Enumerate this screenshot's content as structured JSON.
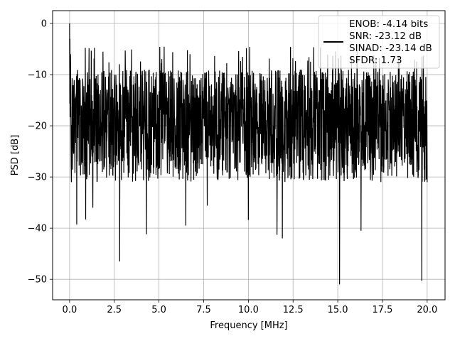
{
  "chart_data": {
    "type": "line",
    "title": "",
    "xlabel": "Frequency [MHz]",
    "ylabel": "PSD [dB]",
    "xlim": [
      -0.95,
      21.0
    ],
    "ylim": [
      -54.0,
      2.5
    ],
    "x_ticks": [
      0.0,
      2.5,
      5.0,
      7.5,
      10.0,
      12.5,
      15.0,
      17.5,
      20.0
    ],
    "x_tick_labels": [
      "0.0",
      "2.5",
      "5.0",
      "7.5",
      "10.0",
      "12.5",
      "15.0",
      "17.5",
      "20.0"
    ],
    "y_ticks": [
      0,
      -10,
      -20,
      -30,
      -40,
      -50
    ],
    "y_tick_labels": [
      "0",
      "−10",
      "−20",
      "−30",
      "−40",
      "−50"
    ],
    "grid": true,
    "legend_position": "top-right",
    "legend": {
      "lines": [
        "ENOB: -4.14 bits",
        "SNR: -23.12 dB",
        "SINAD: -23.14 dB",
        "SFDR: 1.73"
      ]
    },
    "series": [
      {
        "color": "#000000",
        "noise_floor_range_db": [
          -31,
          -8
        ],
        "x": [
          0.0,
          0.02,
          0.05,
          0.1,
          0.4,
          0.9,
          1.3,
          2.8,
          4.3,
          6.5,
          7.7,
          10.0,
          11.6,
          11.9,
          15.1,
          16.3,
          19.7,
          20.0
        ],
        "y": [
          0.0,
          -3.0,
          -6.0,
          -31.0,
          -39.3,
          -38.3,
          -36.0,
          -46.5,
          -41.2,
          -39.5,
          -35.6,
          -38.4,
          -41.3,
          -42.0,
          -51.0,
          -40.5,
          -50.3,
          -31.0
        ]
      }
    ]
  }
}
